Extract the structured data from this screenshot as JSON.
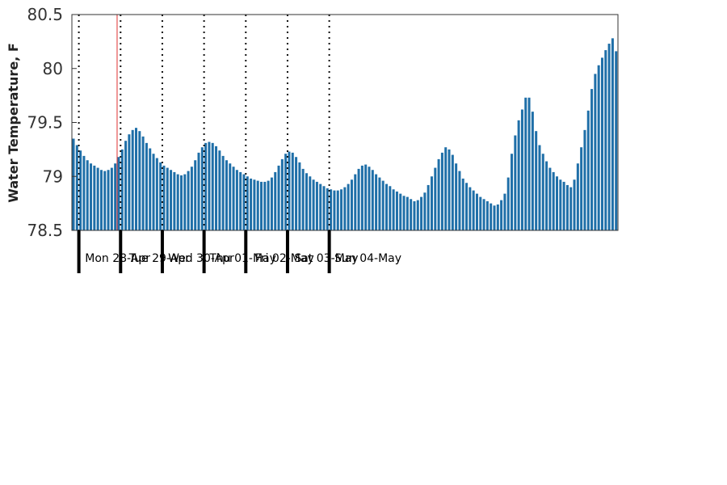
{
  "chart_data": {
    "type": "bar",
    "title": "",
    "xlabel": "",
    "ylabel": "Water Temperature, F",
    "ylim": [
      78.5,
      80.5
    ],
    "yticks": [
      "78.5",
      "79",
      "79.5",
      "80",
      "80.5"
    ],
    "x_start": "2025-04-27 20:00",
    "interval_hours": 2,
    "bar_color": "#1f6fa8",
    "marker_line_color": "#e03030",
    "marker_time": "2025-04-28 22:00",
    "grid": "dotted vertical lines at midnight",
    "day_labels": [
      "Mon 28-Apr",
      "Tue 29-Apr",
      "Wed 30-Apr",
      "Thu 01-May",
      "Fri 02-May",
      "Sat 03-May",
      "Sun 04-May"
    ],
    "values": [
      79.35,
      79.29,
      79.24,
      79.19,
      79.15,
      79.12,
      79.1,
      79.08,
      79.06,
      79.05,
      79.06,
      79.08,
      79.12,
      79.18,
      79.25,
      79.33,
      79.39,
      79.43,
      79.45,
      79.42,
      79.37,
      79.31,
      79.26,
      79.21,
      79.17,
      79.13,
      79.1,
      79.08,
      79.06,
      79.04,
      79.02,
      79.01,
      79.02,
      79.05,
      79.09,
      79.15,
      79.22,
      79.27,
      79.31,
      79.32,
      79.31,
      79.28,
      79.24,
      79.19,
      79.15,
      79.12,
      79.09,
      79.06,
      79.04,
      79.02,
      79.0,
      78.98,
      78.97,
      78.96,
      78.95,
      78.95,
      78.96,
      78.99,
      79.04,
      79.1,
      79.16,
      79.21,
      79.23,
      79.22,
      79.18,
      79.13,
      79.07,
      79.03,
      79.0,
      78.97,
      78.95,
      78.93,
      78.91,
      78.89,
      78.88,
      78.87,
      78.87,
      78.88,
      78.9,
      78.93,
      78.97,
      79.02,
      79.07,
      79.1,
      79.11,
      79.09,
      79.06,
      79.02,
      78.99,
      78.96,
      78.93,
      78.91,
      78.88,
      78.86,
      78.84,
      78.82,
      78.81,
      78.79,
      78.77,
      78.78,
      78.81,
      78.85,
      78.92,
      79.0,
      79.08,
      79.16,
      79.22,
      79.27,
      79.25,
      79.2,
      79.12,
      79.05,
      78.98,
      78.94,
      78.9,
      78.87,
      78.84,
      78.81,
      78.79,
      78.77,
      78.75,
      78.73,
      78.74,
      78.78,
      78.84,
      78.99,
      79.21,
      79.38,
      79.52,
      79.62,
      79.73,
      79.73,
      79.6,
      79.42,
      79.29,
      79.21,
      79.14,
      79.08,
      79.04,
      79.0,
      78.97,
      78.95,
      78.92,
      78.9,
      78.97,
      79.12,
      79.27,
      79.43,
      79.61,
      79.81,
      79.95,
      80.03,
      80.1,
      80.17,
      80.23,
      80.28,
      80.16
    ]
  }
}
